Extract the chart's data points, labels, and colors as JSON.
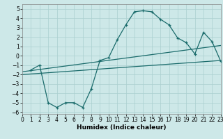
{
  "xlabel": "Humidex (Indice chaleur)",
  "bg_color": "#cde8e8",
  "grid_color": "#aacfcf",
  "line_color": "#1a6b6b",
  "xlim": [
    0,
    23
  ],
  "ylim": [
    -6.2,
    5.5
  ],
  "xticks": [
    0,
    1,
    2,
    3,
    4,
    5,
    6,
    7,
    8,
    9,
    10,
    11,
    12,
    13,
    14,
    15,
    16,
    17,
    18,
    19,
    20,
    21,
    22,
    23
  ],
  "yticks": [
    -6,
    -5,
    -4,
    -3,
    -2,
    -1,
    0,
    1,
    2,
    3,
    4,
    5
  ],
  "curve1_x": [
    1,
    2,
    3,
    4,
    5,
    6,
    7,
    8,
    9,
    10,
    11,
    12,
    13,
    14,
    15,
    16,
    17,
    18,
    19,
    20,
    21,
    22,
    23
  ],
  "curve1_y": [
    -1.5,
    -1.0,
    -5.0,
    -5.5,
    -5.0,
    -5.0,
    -5.5,
    -3.5,
    -0.5,
    -0.2,
    1.7,
    3.3,
    4.7,
    4.8,
    4.7,
    3.9,
    3.3,
    1.9,
    1.4,
    0.2,
    2.5,
    1.5,
    -0.6
  ],
  "line1_x": [
    0,
    23
  ],
  "line1_y": [
    -1.7,
    1.1
  ],
  "line2_x": [
    0,
    23
  ],
  "line2_y": [
    -2.0,
    -0.5
  ],
  "xlabel_fontsize": 6.5,
  "tick_fontsize": 5.5
}
